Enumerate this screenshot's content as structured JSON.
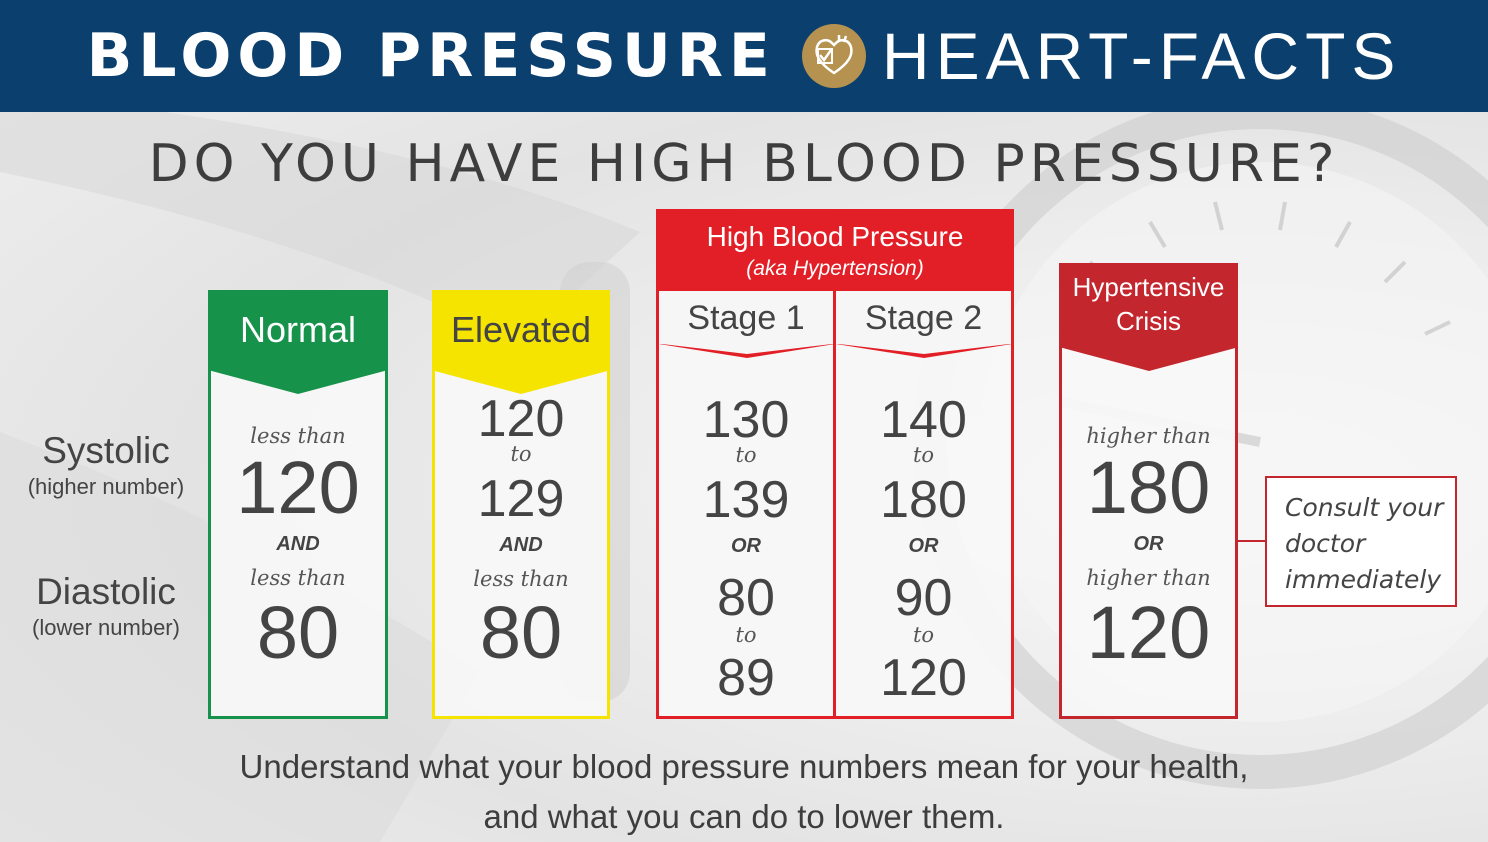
{
  "banner": {
    "left_title": "BLOOD PRESSURE",
    "right_title": "HEART-FACTS",
    "logo_icon": "heart-check-icon",
    "background_color": "#0b3f6d",
    "logo_color": "#b5924f"
  },
  "headline": "DO YOU HAVE HIGH BLOOD PRESSURE?",
  "row_labels": {
    "systolic": "Systolic",
    "systolic_sub": "(higher number)",
    "diastolic": "Diastolic",
    "diastolic_sub": "(lower number)"
  },
  "categories": {
    "normal": {
      "title": "Normal",
      "color": "#17924a",
      "systolic_prefix": "less than",
      "systolic_value": "120",
      "conjunction": "AND",
      "diastolic_prefix": "less than",
      "diastolic_value": "80"
    },
    "elevated": {
      "title": "Elevated",
      "color": "#f5e400",
      "systolic_from": "120",
      "systolic_to_word": "to",
      "systolic_to": "129",
      "conjunction": "AND",
      "diastolic_prefix": "less than",
      "diastolic_value": "80"
    },
    "high": {
      "title": "High Blood Pressure",
      "subtitle": "(aka Hypertension)",
      "color": "#e21f26",
      "stage1": {
        "title": "Stage 1",
        "systolic_from": "130",
        "systolic_to_word": "to",
        "systolic_to": "139",
        "conjunction": "OR",
        "diastolic_from": "80",
        "diastolic_to_word": "to",
        "diastolic_to": "89"
      },
      "stage2": {
        "title": "Stage 2",
        "systolic_from": "140",
        "systolic_to_word": "to",
        "systolic_to": "180",
        "conjunction": "OR",
        "diastolic_from": "90",
        "diastolic_to_word": "to",
        "diastolic_to": "120"
      }
    },
    "crisis": {
      "title_line1": "Hypertensive",
      "title_line2": "Crisis",
      "color": "#c4262e",
      "systolic_prefix": "higher than",
      "systolic_value": "180",
      "conjunction": "OR",
      "diastolic_prefix": "higher than",
      "diastolic_value": "120"
    }
  },
  "note": {
    "line1": "Consult your",
    "line2": "doctor",
    "line3": "immediately"
  },
  "footer": {
    "line1": "Understand what your blood pressure numbers mean for your health,",
    "line2": "and what you can do to lower them."
  }
}
